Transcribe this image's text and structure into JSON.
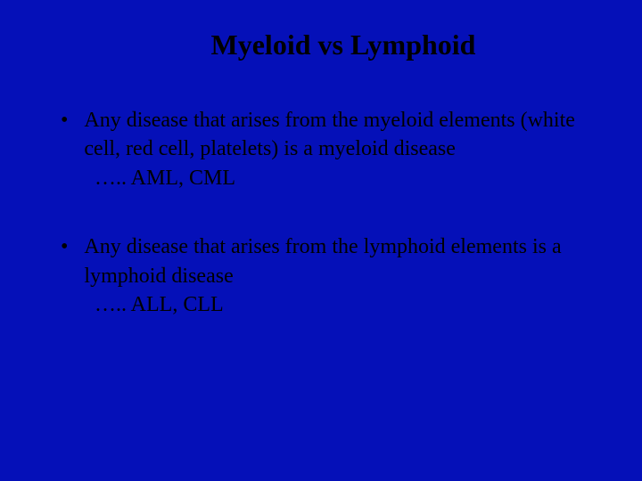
{
  "slide": {
    "background_color": "#0510b8",
    "text_color": "#000000",
    "title": "Myeloid vs Lymphoid",
    "title_fontsize": 32,
    "title_fontweight": "bold",
    "body_fontsize": 24,
    "font_family": "Times New Roman",
    "bullets": [
      {
        "marker": "•",
        "text": "Any disease that arises from the myeloid elements (white cell, red cell, platelets) is a myeloid disease",
        "sub": "….. AML, CML"
      },
      {
        "marker": "•",
        "text": "Any disease that arises from the lymphoid elements is a lymphoid disease",
        "sub": "….. ALL, CLL"
      }
    ]
  }
}
